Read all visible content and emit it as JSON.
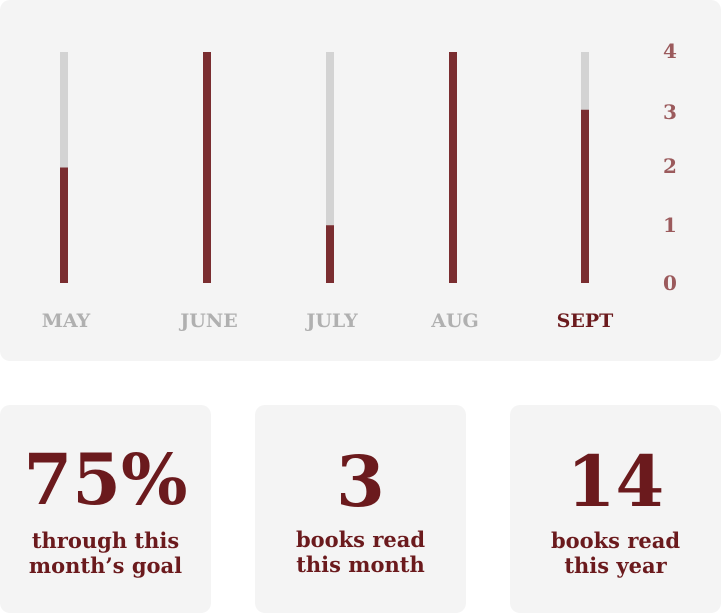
{
  "chart_data": {
    "type": "bar",
    "categories": [
      "MAY",
      "JUNE",
      "JULY",
      "AUG",
      "SEPT"
    ],
    "values": [
      2,
      4,
      1,
      4,
      3
    ],
    "highlighted_category": "SEPT",
    "yticks": [
      0,
      1,
      2,
      3,
      4
    ],
    "ylim": [
      0,
      4
    ],
    "y_axis_position": "right",
    "colors": {
      "filled": "#7a2d30",
      "track": "#d3d3d3",
      "tick_label": "#9b5a5c",
      "category_label": "#b0b0b0",
      "category_highlight": "#6b1a1d"
    }
  },
  "stats": [
    {
      "value": "75%",
      "caption_lines": [
        "through this",
        "month’s goal"
      ]
    },
    {
      "value": "3",
      "caption_lines": [
        "books read",
        "this month"
      ]
    },
    {
      "value": "14",
      "caption_lines": [
        "books read",
        "this year"
      ]
    }
  ]
}
